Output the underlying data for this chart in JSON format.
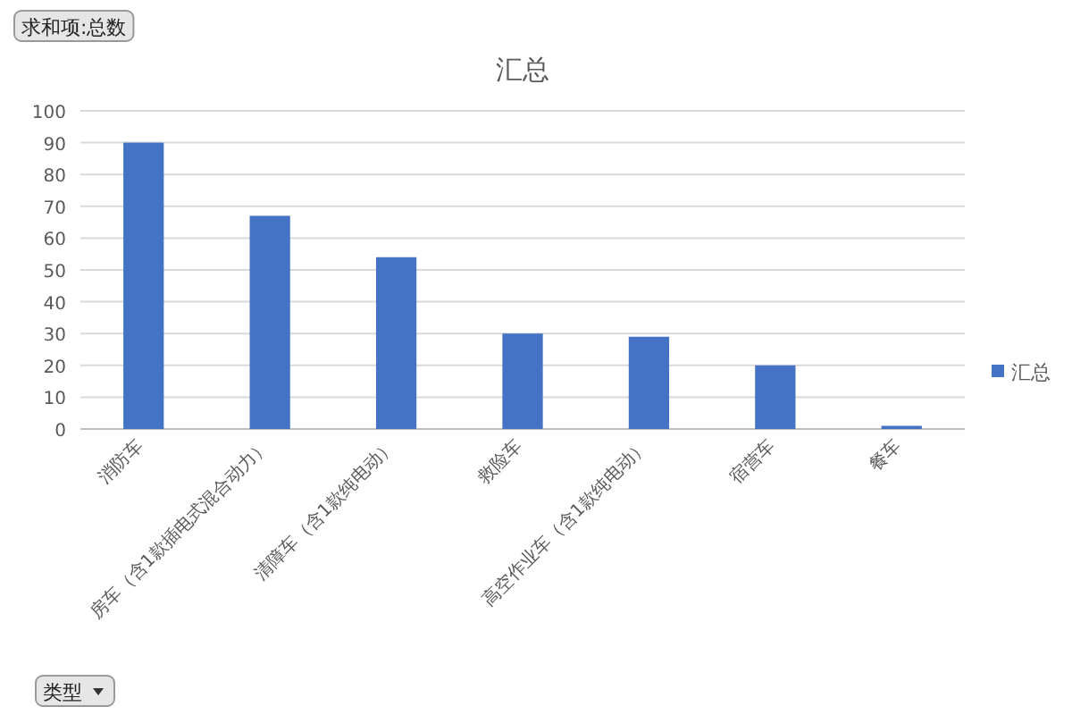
{
  "chart_data": {
    "type": "bar",
    "title": "汇总",
    "categories": [
      "消防车",
      "房车（含1款插电式混合动力）",
      "清障车（含1款纯电动）",
      "救险车",
      "高空作业车（含1款纯电动）",
      "宿营车",
      "餐车"
    ],
    "series": [
      {
        "name": "汇总",
        "color": "#4472c4",
        "values": [
          90,
          67,
          54,
          30,
          29,
          20,
          1
        ]
      }
    ],
    "ylim": [
      0,
      100
    ],
    "yticks": [
      0,
      10,
      20,
      30,
      40,
      50,
      60,
      70,
      80,
      90,
      100
    ],
    "grid": "y",
    "legend": "right",
    "annotations": [
      "求和项:总数",
      "类型"
    ]
  }
}
